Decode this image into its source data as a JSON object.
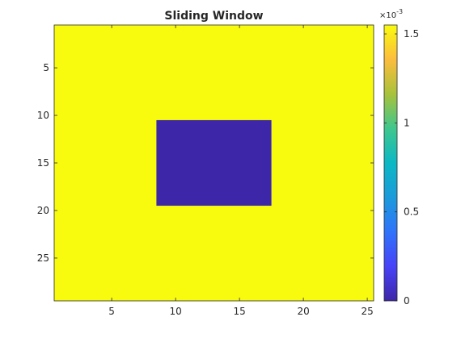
{
  "chart_data": {
    "type": "heatmap",
    "title": "Sliding Window",
    "xlabel": "",
    "ylabel": "",
    "x_range": [
      0.5,
      25.5
    ],
    "y_range": [
      0.5,
      29.5
    ],
    "y_direction": "reversed",
    "x_ticks": [
      5,
      10,
      15,
      20,
      25
    ],
    "y_ticks": [
      5,
      10,
      15,
      20,
      25
    ],
    "grid": false,
    "background_value": 0.00155,
    "regions": [
      {
        "x_from": 9,
        "x_to": 17,
        "y_from": 11,
        "y_to": 19,
        "value": 0
      }
    ],
    "colorbar": {
      "colormap": "parula",
      "range": [
        0,
        0.00155
      ],
      "ticks": [
        0,
        0.0005,
        0.001,
        0.0015
      ],
      "tick_labels": [
        "0",
        "0.5",
        "1",
        "1.5"
      ],
      "exponent_base": "×10",
      "exponent_power": "-3",
      "placement": "right"
    },
    "colors": {
      "high": "#f9fb0e",
      "low": "#3e26a8"
    }
  }
}
